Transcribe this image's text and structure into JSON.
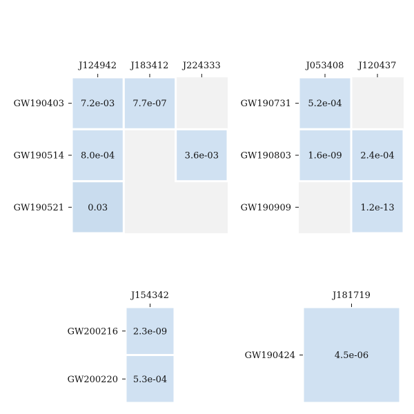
{
  "chart_data": [
    {
      "type": "heatmap",
      "columns": [
        "J124942",
        "J183412",
        "J224333"
      ],
      "rows": [
        "GW190403",
        "GW190514",
        "GW190521"
      ],
      "cells": [
        {
          "row": 0,
          "col": 0,
          "value": 0.0072,
          "label": "7.2e-03"
        },
        {
          "row": 0,
          "col": 1,
          "value": 7.7e-07,
          "label": "7.7e-07"
        },
        {
          "row": 1,
          "col": 0,
          "value": 0.0008,
          "label": "8.0e-04"
        },
        {
          "row": 1,
          "col": 2,
          "value": 0.0036,
          "label": "3.6e-03"
        },
        {
          "row": 2,
          "col": 0,
          "value": 0.03,
          "label": "0.03"
        }
      ]
    },
    {
      "type": "heatmap",
      "columns": [
        "J053408",
        "J120437"
      ],
      "rows": [
        "GW190731",
        "GW190803",
        "GW190909"
      ],
      "cells": [
        {
          "row": 0,
          "col": 0,
          "value": 0.00052,
          "label": "5.2e-04"
        },
        {
          "row": 1,
          "col": 0,
          "value": 1.6e-09,
          "label": "1.6e-09"
        },
        {
          "row": 1,
          "col": 1,
          "value": 0.00024,
          "label": "2.4e-04"
        },
        {
          "row": 2,
          "col": 1,
          "value": 1.2e-13,
          "label": "1.2e-13"
        }
      ]
    },
    {
      "type": "heatmap",
      "columns": [
        "J154342"
      ],
      "rows": [
        "GW200216",
        "GW200220"
      ],
      "cells": [
        {
          "row": 0,
          "col": 0,
          "value": 2.3e-09,
          "label": "2.3e-09"
        },
        {
          "row": 1,
          "col": 0,
          "value": 0.00053,
          "label": "5.3e-04"
        }
      ]
    },
    {
      "type": "heatmap",
      "columns": [
        "J181719"
      ],
      "rows": [
        "GW190424"
      ],
      "cells": [
        {
          "row": 0,
          "col": 0,
          "value": 4.5e-06,
          "label": "4.5e-06"
        }
      ]
    }
  ],
  "colors": {
    "background_cell": "#f2f2f2",
    "cell_fill": "#d0e1f2",
    "cell_fill_high": "#c9dcee",
    "cell_border": "#ffffff",
    "text": "#111111"
  }
}
